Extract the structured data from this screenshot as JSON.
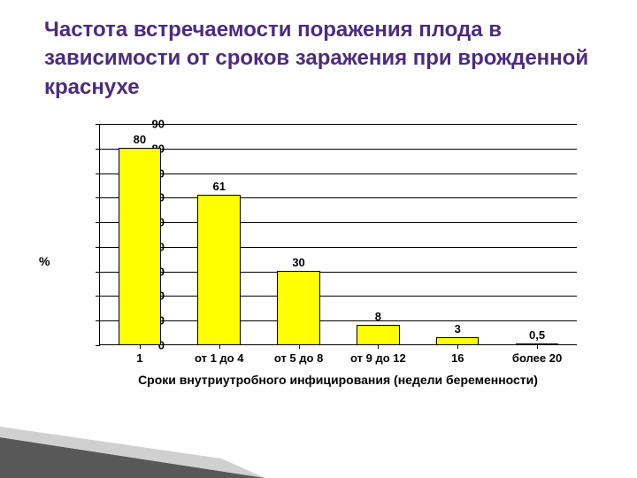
{
  "title": "Частота встречаемости поражения плода в зависимости от сроков заражения при врожденной краснухе",
  "chart": {
    "type": "bar",
    "ylabel": "%",
    "xlabel": "Сроки внутриутробного инфицирования (недели беременности)",
    "ylim": [
      0,
      90
    ],
    "ytick_step": 10,
    "yticks": [
      0,
      10,
      20,
      30,
      40,
      50,
      60,
      70,
      80,
      90
    ],
    "categories": [
      "1",
      "от 1 до 4",
      "от 5 до 8",
      "от 9 до 12",
      "16",
      "более 20"
    ],
    "values": [
      80,
      61,
      30,
      8,
      3,
      0.5
    ],
    "bar_color": "#ffff00",
    "bar_border": "#000000",
    "grid_color": "#000000",
    "background_color": "#ffffff",
    "label_fontsize": 13,
    "axis_fontsize": 14,
    "title_color": "#4b2c7f",
    "title_fontsize": 24,
    "bar_width": 0.54
  },
  "decoration": {
    "stripe_dark": "#585858",
    "stripe_light": "#d0d0d0"
  }
}
